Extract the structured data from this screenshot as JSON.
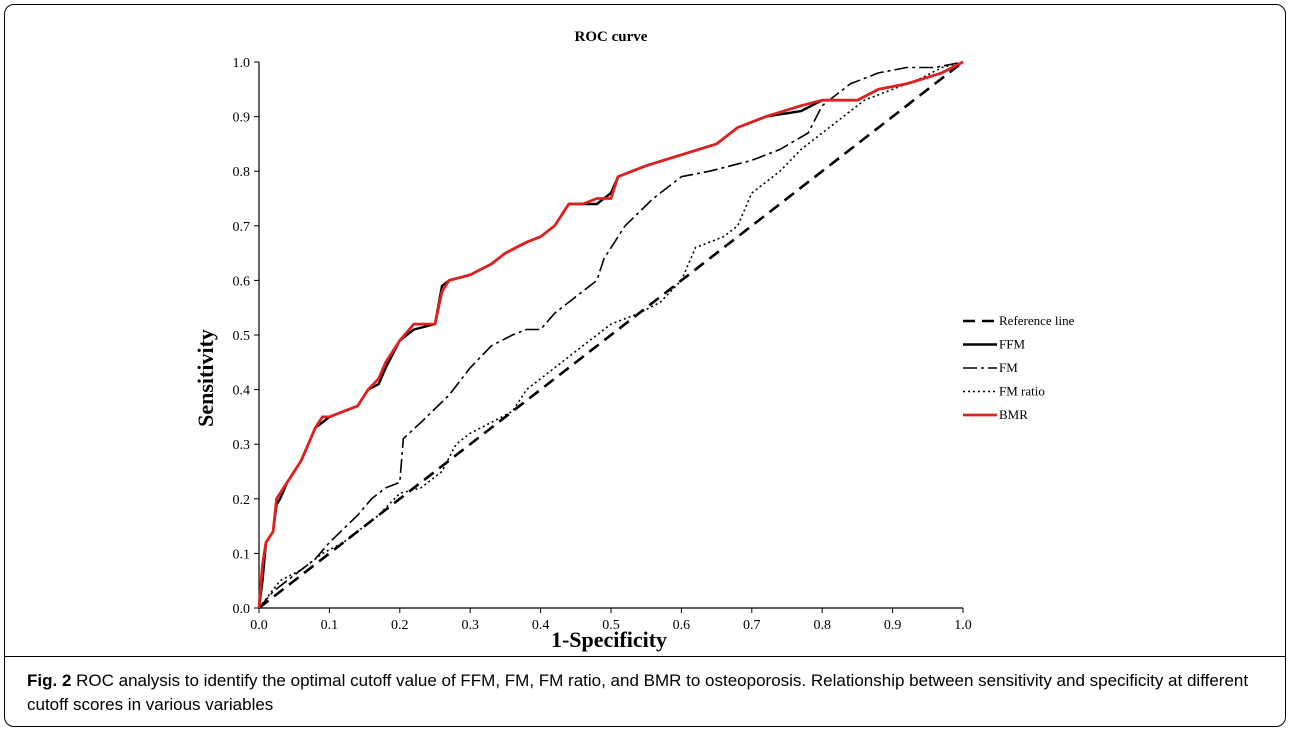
{
  "figure": {
    "caption_label": "Fig. 2",
    "caption_text": " ROC analysis to identify the optimal cutoff value of FFM, FM, FM ratio, and BMR to osteoporosis. Relationship between sensitivity and specificity at different cutoff scores in various variables"
  },
  "chart_data": {
    "type": "line",
    "title": "ROC curve",
    "xlabel": "1-Specificity",
    "ylabel": "Sensitivity",
    "xlim": [
      0,
      1
    ],
    "ylim": [
      0,
      1
    ],
    "xticks": [
      "0.0",
      "0.1",
      "0.2",
      "0.3",
      "0.4",
      "0.5",
      "0.6",
      "0.7",
      "0.8",
      "0.9",
      "1.0"
    ],
    "yticks": [
      "0.0",
      "0.1",
      "0.2",
      "0.3",
      "0.4",
      "0.5",
      "0.6",
      "0.7",
      "0.8",
      "0.9",
      "1.0"
    ],
    "grid": false,
    "legend_position": "right",
    "series": [
      {
        "name": "Reference line",
        "color": "#000000",
        "dash": "long-dash",
        "x": [
          0,
          1
        ],
        "y": [
          0,
          1
        ]
      },
      {
        "name": "FFM",
        "color": "#000000",
        "dash": "solid",
        "x": [
          0,
          0.005,
          0.01,
          0.015,
          0.02,
          0.025,
          0.03,
          0.04,
          0.05,
          0.06,
          0.07,
          0.08,
          0.09,
          0.1,
          0.12,
          0.14,
          0.155,
          0.17,
          0.18,
          0.2,
          0.22,
          0.25,
          0.26,
          0.27,
          0.3,
          0.33,
          0.35,
          0.38,
          0.4,
          0.42,
          0.44,
          0.46,
          0.48,
          0.5,
          0.51,
          0.55,
          0.6,
          0.65,
          0.68,
          0.72,
          0.77,
          0.8,
          0.85,
          0.88,
          0.92,
          0.97,
          1.0
        ],
        "y": [
          0,
          0.05,
          0.12,
          0.13,
          0.14,
          0.19,
          0.2,
          0.23,
          0.25,
          0.27,
          0.3,
          0.33,
          0.34,
          0.35,
          0.36,
          0.37,
          0.4,
          0.41,
          0.44,
          0.49,
          0.51,
          0.52,
          0.59,
          0.6,
          0.61,
          0.63,
          0.65,
          0.67,
          0.68,
          0.7,
          0.74,
          0.74,
          0.74,
          0.76,
          0.79,
          0.81,
          0.83,
          0.85,
          0.88,
          0.9,
          0.91,
          0.93,
          0.93,
          0.95,
          0.96,
          0.98,
          1.0
        ]
      },
      {
        "name": "FM",
        "color": "#000000",
        "dash": "dash-dot",
        "x": [
          0,
          0.02,
          0.05,
          0.08,
          0.1,
          0.14,
          0.16,
          0.18,
          0.2,
          0.205,
          0.23,
          0.27,
          0.3,
          0.33,
          0.36,
          0.38,
          0.4,
          0.42,
          0.44,
          0.46,
          0.48,
          0.49,
          0.52,
          0.56,
          0.6,
          0.64,
          0.7,
          0.74,
          0.78,
          0.8,
          0.84,
          0.88,
          0.92,
          0.96,
          1.0
        ],
        "y": [
          0,
          0.03,
          0.06,
          0.09,
          0.12,
          0.17,
          0.2,
          0.22,
          0.23,
          0.31,
          0.34,
          0.39,
          0.44,
          0.48,
          0.5,
          0.51,
          0.51,
          0.54,
          0.56,
          0.58,
          0.6,
          0.64,
          0.7,
          0.75,
          0.79,
          0.8,
          0.82,
          0.84,
          0.87,
          0.92,
          0.96,
          0.98,
          0.99,
          0.99,
          1.0
        ]
      },
      {
        "name": "FM ratio",
        "color": "#000000",
        "dash": "dotted",
        "x": [
          0,
          0.03,
          0.06,
          0.09,
          0.12,
          0.14,
          0.17,
          0.2,
          0.23,
          0.26,
          0.28,
          0.3,
          0.33,
          0.36,
          0.38,
          0.42,
          0.46,
          0.5,
          0.54,
          0.57,
          0.6,
          0.62,
          0.66,
          0.68,
          0.7,
          0.74,
          0.77,
          0.8,
          0.83,
          0.86,
          0.9,
          0.94,
          0.97,
          1.0
        ],
        "y": [
          0,
          0.05,
          0.07,
          0.1,
          0.12,
          0.14,
          0.17,
          0.21,
          0.22,
          0.25,
          0.3,
          0.32,
          0.34,
          0.36,
          0.4,
          0.44,
          0.48,
          0.52,
          0.54,
          0.56,
          0.6,
          0.66,
          0.68,
          0.7,
          0.76,
          0.8,
          0.84,
          0.87,
          0.9,
          0.93,
          0.95,
          0.97,
          0.99,
          1.0
        ]
      },
      {
        "name": "BMR",
        "color": "#e02020",
        "dash": "solid",
        "x": [
          0,
          0.005,
          0.01,
          0.015,
          0.02,
          0.025,
          0.03,
          0.04,
          0.05,
          0.06,
          0.07,
          0.08,
          0.09,
          0.1,
          0.12,
          0.14,
          0.155,
          0.17,
          0.18,
          0.2,
          0.22,
          0.25,
          0.26,
          0.27,
          0.3,
          0.33,
          0.35,
          0.38,
          0.4,
          0.42,
          0.44,
          0.46,
          0.48,
          0.5,
          0.51,
          0.55,
          0.6,
          0.65,
          0.68,
          0.72,
          0.77,
          0.8,
          0.85,
          0.88,
          0.92,
          0.97,
          1.0
        ],
        "y": [
          0,
          0.08,
          0.12,
          0.13,
          0.14,
          0.2,
          0.21,
          0.23,
          0.25,
          0.27,
          0.3,
          0.33,
          0.35,
          0.35,
          0.36,
          0.37,
          0.4,
          0.42,
          0.45,
          0.49,
          0.52,
          0.52,
          0.58,
          0.6,
          0.61,
          0.63,
          0.65,
          0.67,
          0.68,
          0.7,
          0.74,
          0.74,
          0.75,
          0.75,
          0.79,
          0.81,
          0.83,
          0.85,
          0.88,
          0.9,
          0.92,
          0.93,
          0.93,
          0.95,
          0.96,
          0.98,
          1.0
        ]
      }
    ]
  }
}
